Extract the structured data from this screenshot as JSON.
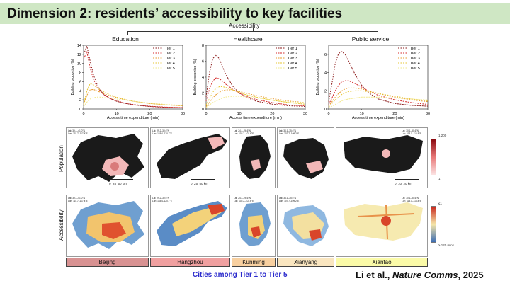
{
  "slide_title": "Dimension 2: residents’ accessibility to key facilities",
  "bracket_label": "Accessibility",
  "chart_data": [
    {
      "type": "line",
      "title": "Education",
      "xlabel": "Access time expenditure (min)",
      "ylabel": "Building proportion (%)",
      "xlim": [
        0,
        30
      ],
      "ylim": [
        0,
        14
      ],
      "xticks": [
        "0",
        "10",
        "20",
        "30"
      ],
      "yticks": [
        "0",
        "2",
        "4",
        "6",
        "8",
        "10",
        "12",
        "14"
      ],
      "x": [
        0,
        1,
        2,
        3,
        4,
        5,
        6,
        8,
        10,
        12,
        15,
        20,
        25,
        30
      ],
      "series": [
        {
          "name": "Tier 1",
          "values": [
            12,
            13.8,
            10.5,
            7.5,
            5.5,
            4.2,
            3.3,
            2.3,
            1.7,
            1.3,
            0.9,
            0.55,
            0.35,
            0.25
          ]
        },
        {
          "name": "Tier 2",
          "values": [
            11,
            12.5,
            9,
            6.5,
            5,
            4,
            3.2,
            2.3,
            1.8,
            1.4,
            1.0,
            0.6,
            0.4,
            0.3
          ]
        },
        {
          "name": "Tier 3",
          "values": [
            1,
            3,
            4.2,
            4.3,
            4.0,
            3.7,
            3.4,
            2.9,
            2.5,
            2.1,
            1.7,
            1.2,
            0.9,
            0.7
          ]
        },
        {
          "name": "Tier 4",
          "values": [
            1,
            4,
            5.6,
            5.3,
            4.7,
            4.2,
            3.8,
            3.1,
            2.6,
            2.2,
            1.7,
            1.2,
            0.9,
            0.7
          ]
        },
        {
          "name": "Tier 5",
          "values": [
            0.5,
            1.5,
            2.2,
            2.5,
            2.6,
            2.6,
            2.5,
            2.4,
            2.2,
            2.0,
            1.7,
            1.3,
            1.0,
            0.8
          ]
        }
      ]
    },
    {
      "type": "line",
      "title": "Healthcare",
      "xlabel": "Access time expenditure (min)",
      "ylabel": "Building proportion (%)",
      "xlim": [
        0,
        30
      ],
      "ylim": [
        0,
        8
      ],
      "xticks": [
        "0",
        "10",
        "20",
        "30"
      ],
      "yticks": [
        "0",
        "2",
        "4",
        "6",
        "8"
      ],
      "x": [
        0,
        1,
        2,
        3,
        4,
        5,
        6,
        8,
        10,
        12,
        15,
        20,
        25,
        30
      ],
      "series": [
        {
          "name": "Tier 1",
          "values": [
            1.5,
            4.5,
            6.3,
            6.8,
            6.3,
            5.3,
            4.3,
            2.9,
            2.0,
            1.5,
            1.0,
            0.6,
            0.4,
            0.3
          ]
        },
        {
          "name": "Tier 2",
          "values": [
            1.0,
            2.5,
            3.5,
            3.9,
            3.8,
            3.5,
            3.1,
            2.5,
            2.0,
            1.6,
            1.2,
            0.8,
            0.5,
            0.4
          ]
        },
        {
          "name": "Tier 3",
          "values": [
            0.3,
            0.8,
            1.4,
            1.8,
            2.1,
            2.3,
            2.4,
            2.4,
            2.2,
            2.0,
            1.7,
            1.3,
            1.0,
            0.8
          ]
        },
        {
          "name": "Tier 4",
          "values": [
            0.5,
            1.3,
            2.1,
            2.6,
            2.8,
            2.8,
            2.7,
            2.4,
            2.1,
            1.8,
            1.5,
            1.1,
            0.8,
            0.6
          ]
        },
        {
          "name": "Tier 5",
          "values": [
            0.2,
            0.5,
            0.8,
            1.0,
            1.2,
            1.4,
            1.5,
            1.6,
            1.6,
            1.5,
            1.4,
            1.1,
            0.9,
            0.8
          ]
        }
      ]
    },
    {
      "type": "line",
      "title": "Public service",
      "xlabel": "Access time expenditure (min)",
      "ylabel": "Building proportion (%)",
      "xlim": [
        0,
        30
      ],
      "ylim": [
        0,
        7
      ],
      "xticks": [
        "0",
        "10",
        "20",
        "30"
      ],
      "yticks": [
        "0",
        "2",
        "4",
        "6"
      ],
      "x": [
        0,
        1,
        2,
        3,
        4,
        5,
        6,
        8,
        10,
        12,
        15,
        20,
        25,
        30
      ],
      "series": [
        {
          "name": "Tier 1",
          "values": [
            0.8,
            2.8,
            5.0,
            6.1,
            6.3,
            6.0,
            5.3,
            3.8,
            2.6,
            1.8,
            1.1,
            0.6,
            0.4,
            0.3
          ]
        },
        {
          "name": "Tier 2",
          "values": [
            0.5,
            1.2,
            2.0,
            2.6,
            3.0,
            3.1,
            3.1,
            2.8,
            2.4,
            2.0,
            1.5,
            1.0,
            0.7,
            0.5
          ]
        },
        {
          "name": "Tier 3",
          "values": [
            0.3,
            0.8,
            1.3,
            1.7,
            2.0,
            2.2,
            2.3,
            2.3,
            2.2,
            2.0,
            1.7,
            1.3,
            1.0,
            0.8
          ]
        },
        {
          "name": "Tier 4",
          "values": [
            0.2,
            0.6,
            1.0,
            1.3,
            1.6,
            1.8,
            1.9,
            2.0,
            2.0,
            1.9,
            1.7,
            1.4,
            1.1,
            0.9
          ]
        },
        {
          "name": "Tier 5",
          "values": [
            0.1,
            0.3,
            0.5,
            0.7,
            0.9,
            1.0,
            1.1,
            1.2,
            1.3,
            1.3,
            1.3,
            1.2,
            1.1,
            1.0
          ]
        }
      ]
    }
  ],
  "series_colors": [
    "#8b1a1a",
    "#d42a2a",
    "#e89a2a",
    "#e6c530",
    "#f2e88a"
  ],
  "row_labels": {
    "population": "Population",
    "accessibility": "Accessibility"
  },
  "colorbar": {
    "population": {
      "top": "1,200",
      "bottom": "1",
      "colors": [
        "#8b0a10",
        "#e87878",
        "#fbe2e2"
      ]
    },
    "accessibility": {
      "top": "≤1",
      "bottom": "≥ 120 mins",
      "colors": [
        "#c8281e",
        "#f6e6a8",
        "#3d6eb3"
      ]
    }
  },
  "cities": [
    {
      "name": "Beijing",
      "color": "#d89292"
    },
    {
      "name": "Hangzhou",
      "color": "#f0a0a0"
    },
    {
      "name": "Kunming",
      "color": "#f8d0a0"
    },
    {
      "name": "Xianyang",
      "color": "#fae6c0"
    },
    {
      "name": "Xiantao",
      "color": "#fbfba8"
    }
  ],
  "map_scales": [
    {
      "ticks": [
        "0",
        "25",
        "50"
      ],
      "unit": "km"
    },
    {
      "ticks": [
        "0",
        "25",
        "50"
      ],
      "unit": "km"
    },
    {
      "ticks": [
        "0",
        "10",
        "20"
      ],
      "unit": "km"
    },
    {
      "ticks": [
        "0",
        "10",
        "20"
      ],
      "unit": "km"
    },
    {
      "ticks": [
        "0",
        "10",
        "20"
      ],
      "unit": "km"
    }
  ],
  "footer": {
    "cities_caption": "Cities among Tier 1 to Tier 5",
    "ref_authors": "Li et al., ",
    "ref_journal": "Nature Comms",
    "ref_year": ", 2025"
  }
}
